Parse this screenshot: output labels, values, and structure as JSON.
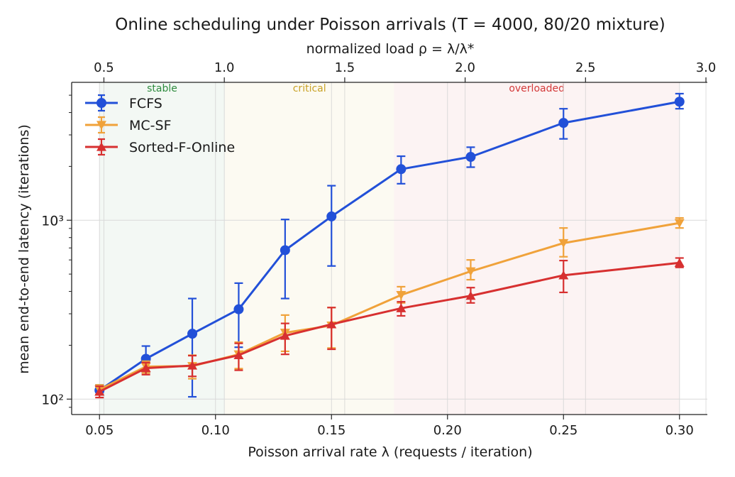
{
  "chart_data": {
    "type": "line",
    "title": "Online scheduling under Poisson arrivals (T = 4000, 80/20 mixture)",
    "xlabel": "Poisson arrival rate  λ  (requests / iteration)",
    "ylabel": "mean end-to-end latency  (iterations)",
    "x2label": "normalized load  ρ = λ/λ*",
    "xlim": [
      0.038,
      0.312
    ],
    "ylim": [
      82,
      5900
    ],
    "yscale": "log",
    "grid": true,
    "legend_position": "top-left",
    "xticks": [
      0.05,
      0.1,
      0.15,
      0.2,
      0.25,
      0.3
    ],
    "xtick_labels": [
      "0.05",
      "0.10",
      "0.15",
      "0.20",
      "0.25",
      "0.30"
    ],
    "x2ticks": [
      0.5,
      1.0,
      1.5,
      2.0,
      2.5,
      3.0
    ],
    "x2tick_labels": [
      "0.5",
      "1.0",
      "1.5",
      "2.0",
      "2.5",
      "3.0"
    ],
    "x2_to_x_factor": 0.1038,
    "yticks": [
      100,
      1000
    ],
    "ytick_labels": [
      "10²",
      "10³"
    ],
    "regions": [
      {
        "label": "stable",
        "x0": 0.05,
        "x1": 0.104,
        "color": "#2e8b3e"
      },
      {
        "label": "critical",
        "x0": 0.104,
        "x1": 0.177,
        "color": "#c9a227"
      },
      {
        "label": "overloaded",
        "x0": 0.177,
        "x1": 0.3,
        "color": "#d43a3a"
      }
    ],
    "series": [
      {
        "name": "FCFS",
        "color": "#2250d8",
        "marker": "circle",
        "x": [
          0.05,
          0.07,
          0.09,
          0.11,
          0.13,
          0.15,
          0.18,
          0.21,
          0.25,
          0.3
        ],
        "y": [
          112,
          168,
          232,
          318,
          680,
          1050,
          1930,
          2260,
          3500,
          4600
        ],
        "err_low": [
          106,
          140,
          103,
          195,
          365,
          555,
          1600,
          1980,
          2850,
          4200
        ],
        "err_high": [
          120,
          198,
          365,
          445,
          1010,
          1560,
          2280,
          2560,
          4200,
          5100
        ]
      },
      {
        "name": "MC-SF",
        "color": "#f0a23a",
        "marker": "triangle-down",
        "x": [
          0.05,
          0.07,
          0.09,
          0.11,
          0.13,
          0.15,
          0.18,
          0.21,
          0.25,
          0.3
        ],
        "y": [
          113,
          152,
          153,
          178,
          235,
          258,
          382,
          518,
          745,
          965
        ],
        "err_low": [
          106,
          140,
          130,
          148,
          185,
          193,
          345,
          465,
          625,
          905
        ],
        "err_high": [
          120,
          163,
          176,
          208,
          295,
          325,
          425,
          600,
          905,
          1030
        ]
      },
      {
        "name": "Sorted-F-Online",
        "color": "#d73030",
        "marker": "triangle-up",
        "x": [
          0.05,
          0.07,
          0.09,
          0.11,
          0.13,
          0.15,
          0.18,
          0.21,
          0.25,
          0.3
        ],
        "y": [
          110,
          149,
          154,
          176,
          226,
          262,
          322,
          378,
          492,
          578
        ],
        "err_low": [
          102,
          137,
          134,
          145,
          178,
          190,
          292,
          345,
          395,
          545
        ],
        "err_high": [
          118,
          160,
          175,
          205,
          265,
          325,
          350,
          420,
          595,
          615
        ]
      }
    ]
  }
}
